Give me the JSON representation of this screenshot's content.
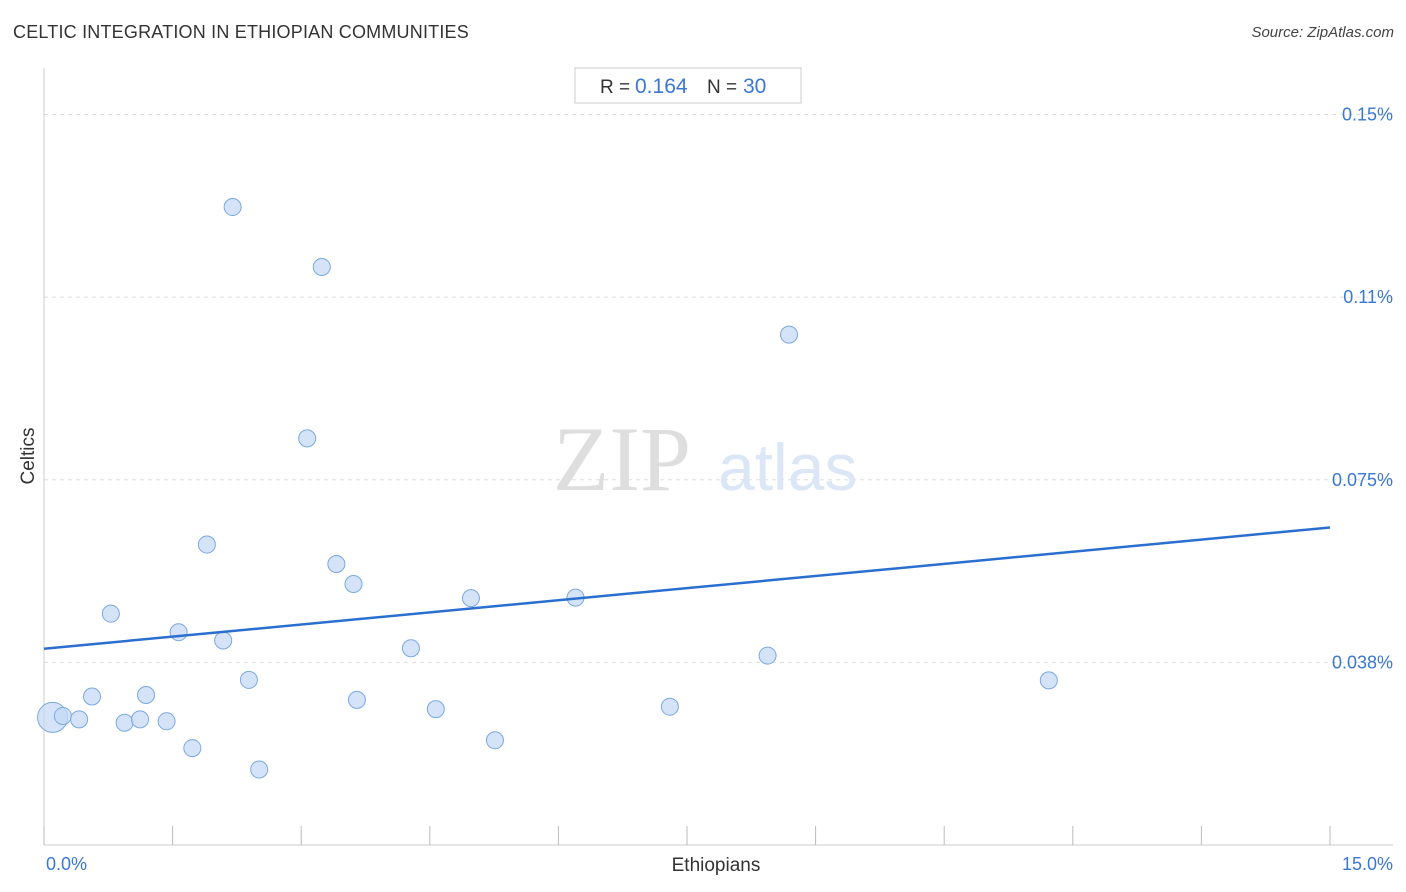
{
  "title": "CELTIC INTEGRATION IN ETHIOPIAN COMMUNITIES",
  "source": "Source: ZipAtlas.com",
  "watermark": {
    "zip": "ZIP",
    "atlas": "atlas"
  },
  "stats": {
    "r_label": "R =",
    "r_value": "0.164",
    "n_label": "N =",
    "n_value": "30"
  },
  "colors": {
    "accent": "#3a78d1",
    "point_fill": "#c5daf5",
    "point_stroke": "#7aa8e0",
    "trend": "#2a6fd0",
    "grid": "#dddddd"
  },
  "chart_data": {
    "type": "scatter",
    "title": "CELTIC INTEGRATION IN ETHIOPIAN COMMUNITIES",
    "xlabel": "Ethiopians",
    "ylabel": "Celtics",
    "xlim": [
      0,
      15
    ],
    "ylim": [
      0,
      0.1575
    ],
    "x_tick_labels": [
      {
        "value": 0,
        "label": "0.0%"
      },
      {
        "value": 15,
        "label": "15.0%"
      }
    ],
    "y_tick_labels": [
      {
        "value": 0.0375,
        "label": "0.038%"
      },
      {
        "value": 0.075,
        "label": "0.075%"
      },
      {
        "value": 0.1125,
        "label": "0.11%"
      },
      {
        "value": 0.15,
        "label": "0.15%"
      }
    ],
    "grid": true,
    "points": [
      {
        "x": 0.1,
        "y": 0.0262,
        "size": "large"
      },
      {
        "x": 0.22,
        "y": 0.0265
      },
      {
        "x": 0.41,
        "y": 0.0258
      },
      {
        "x": 0.56,
        "y": 0.0305
      },
      {
        "x": 0.78,
        "y": 0.0475
      },
      {
        "x": 0.94,
        "y": 0.0251
      },
      {
        "x": 1.12,
        "y": 0.0258
      },
      {
        "x": 1.19,
        "y": 0.0308
      },
      {
        "x": 1.43,
        "y": 0.0254
      },
      {
        "x": 1.57,
        "y": 0.0437
      },
      {
        "x": 1.73,
        "y": 0.0199
      },
      {
        "x": 1.9,
        "y": 0.0617
      },
      {
        "x": 2.09,
        "y": 0.042
      },
      {
        "x": 2.2,
        "y": 0.131
      },
      {
        "x": 2.39,
        "y": 0.0339
      },
      {
        "x": 2.51,
        "y": 0.0155
      },
      {
        "x": 3.07,
        "y": 0.0835
      },
      {
        "x": 3.24,
        "y": 0.1187
      },
      {
        "x": 3.41,
        "y": 0.0577
      },
      {
        "x": 3.61,
        "y": 0.0536
      },
      {
        "x": 3.65,
        "y": 0.0298
      },
      {
        "x": 4.28,
        "y": 0.0404
      },
      {
        "x": 4.57,
        "y": 0.0279
      },
      {
        "x": 4.98,
        "y": 0.0507
      },
      {
        "x": 5.26,
        "y": 0.0215
      },
      {
        "x": 6.2,
        "y": 0.0508
      },
      {
        "x": 7.3,
        "y": 0.0284
      },
      {
        "x": 8.44,
        "y": 0.0389
      },
      {
        "x": 8.69,
        "y": 0.1048
      },
      {
        "x": 11.72,
        "y": 0.0338
      }
    ],
    "trendline": {
      "x": [
        0,
        15
      ],
      "y": [
        0.0403,
        0.0652
      ]
    }
  }
}
